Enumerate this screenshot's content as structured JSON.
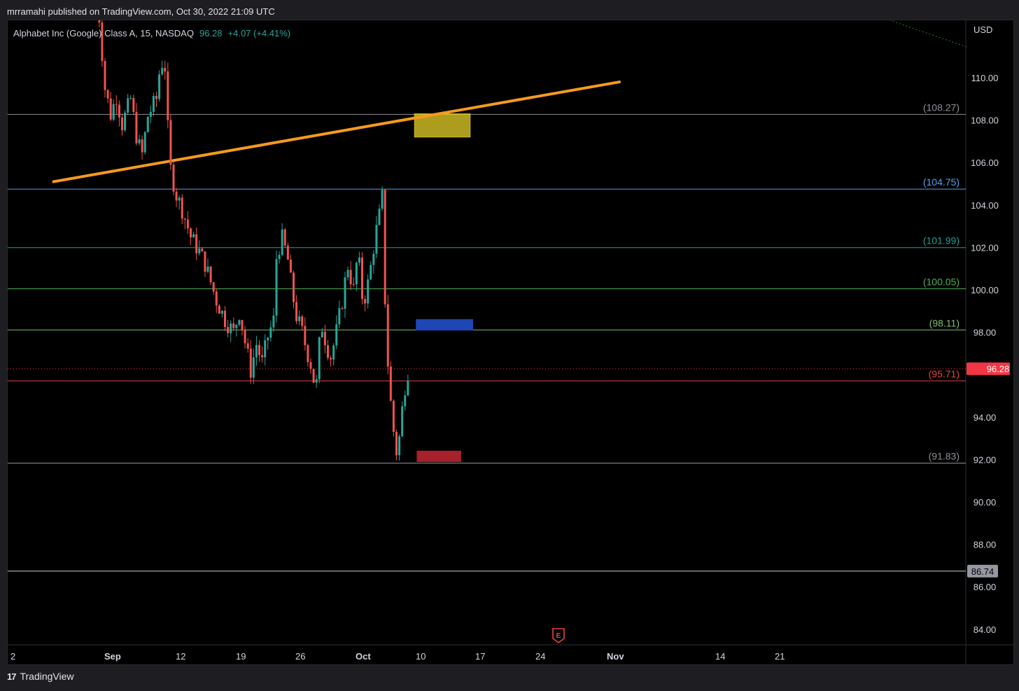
{
  "header": {
    "published": "mrramahi published on TradingView.com, Oct 30, 2022 21:09 UTC"
  },
  "legend": {
    "symbol": "Alphabet Inc (Google) Class A, 15, NASDAQ",
    "price": "96.28",
    "change": "+4.07 (+4.41%)"
  },
  "footer": {
    "brand": "TradingView",
    "logo": "tv-logo-icon"
  },
  "colors": {
    "background": "#000000",
    "up": "#26a69a",
    "down": "#ef5350",
    "trendline": "#f59a1d",
    "current_price": "#f23645"
  },
  "chart_data": {
    "type": "candlestick",
    "currency": "USD",
    "ylim": [
      83,
      113
    ],
    "y_ticks": [
      "84.00",
      "86.00",
      "88.00",
      "90.00",
      "92.00",
      "94.00",
      "96.00",
      "98.00",
      "100.00",
      "102.00",
      "104.00",
      "106.00",
      "108.00",
      "110.00"
    ],
    "x_ticks": [
      "2",
      "Sep",
      "12",
      "19",
      "26",
      "Oct",
      "10",
      "17",
      "24",
      "Nov",
      "14",
      "21"
    ],
    "price_path": [
      [
        -1,
        114.5
      ],
      [
        -0.5,
        112
      ],
      [
        0,
        109.5
      ],
      [
        0.7,
        108.2
      ],
      [
        1.3,
        109.2
      ],
      [
        2,
        107.8
      ],
      [
        3,
        109
      ],
      [
        3.7,
        107.2
      ],
      [
        4.3,
        106.3
      ],
      [
        5,
        108.2
      ],
      [
        6,
        109
      ],
      [
        6.5,
        110.8
      ],
      [
        7,
        110.5
      ],
      [
        7.3,
        107.8
      ],
      [
        7.6,
        105.8
      ],
      [
        8.3,
        104.5
      ],
      [
        9,
        103.8
      ],
      [
        10,
        102.5
      ],
      [
        11,
        101.8
      ],
      [
        11.7,
        101.2
      ],
      [
        12.3,
        100.4
      ],
      [
        13,
        99.5
      ],
      [
        14,
        98.6
      ],
      [
        15,
        98
      ],
      [
        15.7,
        99
      ],
      [
        16.3,
        97.6
      ],
      [
        17,
        96.2
      ],
      [
        17.7,
        97.5
      ],
      [
        18.3,
        96.5
      ],
      [
        19,
        97.8
      ],
      [
        19.7,
        98.6
      ],
      [
        20,
        101.5
      ],
      [
        20.6,
        102.5
      ],
      [
        21.3,
        101.5
      ],
      [
        21.8,
        100
      ],
      [
        22.3,
        98.8
      ],
      [
        23,
        98
      ],
      [
        23.5,
        97.2
      ],
      [
        24,
        96.5
      ],
      [
        24.6,
        95.2
      ],
      [
        25.2,
        98.5
      ],
      [
        25.8,
        97.5
      ],
      [
        26.3,
        96.8
      ],
      [
        26.8,
        97.6
      ],
      [
        27.6,
        99.3
      ],
      [
        28.3,
        101.2
      ],
      [
        29,
        100
      ],
      [
        29.5,
        101.8
      ],
      [
        30.1,
        99.3
      ],
      [
        30.8,
        100.5
      ],
      [
        31.5,
        102.5
      ],
      [
        32,
        103.5
      ],
      [
        32.5,
        104.8
      ],
      [
        32.7,
        98.5
      ],
      [
        33.2,
        95.2
      ],
      [
        33.7,
        93.2
      ],
      [
        34.1,
        92.1
      ],
      [
        34.7,
        94.5
      ],
      [
        35.1,
        95.8
      ],
      [
        35.4,
        96.28
      ]
    ],
    "levels": [
      {
        "label": "(108.27)",
        "value": 108.27,
        "color": "#8d9096",
        "pane_label": true
      },
      {
        "label": "(104.75)",
        "value": 104.75,
        "color": "#5d9cec",
        "pane_label": true
      },
      {
        "label": "(101.99)",
        "value": 101.99,
        "color": "#1e9f8f",
        "pane_label": true
      },
      {
        "label": "(100.05)",
        "value": 100.05,
        "color": "#4caf50",
        "pane_label": true
      },
      {
        "label": "(98.11)",
        "value": 98.11,
        "color": "#7fbf6a",
        "pane_label": true
      },
      {
        "label": "(95.71)",
        "value": 95.71,
        "color": "#e5443d",
        "pane_label": true
      },
      {
        "label": "(91.83)",
        "value": 91.83,
        "color": "#8d9096",
        "pane_label": true
      },
      {
        "label": "86.74",
        "value": 86.74,
        "color": "#cfcfcf",
        "pane_label": false
      }
    ],
    "current_price": {
      "label": "96.28",
      "value": 96.28
    },
    "trendline": {
      "from": {
        "day": -6,
        "price": 105.1
      },
      "to": {
        "day": 60,
        "price": 109.8
      },
      "color": "#f59a1d"
    },
    "zones": [
      {
        "name": "yellow-zone",
        "from_day": 36.1,
        "to_day": 42.6,
        "top": 108.3,
        "bottom": 107.2,
        "color": "rgba(230,210,40,0.75)"
      },
      {
        "name": "blue-zone",
        "from_day": 36.3,
        "to_day": 42.9,
        "top": 98.6,
        "bottom": 98.1,
        "color": "#1f46b5"
      },
      {
        "name": "red-zone",
        "from_day": 36.4,
        "to_day": 41.5,
        "top": 92.4,
        "bottom": 91.9,
        "color": "#a8202b"
      }
    ],
    "earnings_marker": {
      "label": "E",
      "day": 32.5
    }
  }
}
